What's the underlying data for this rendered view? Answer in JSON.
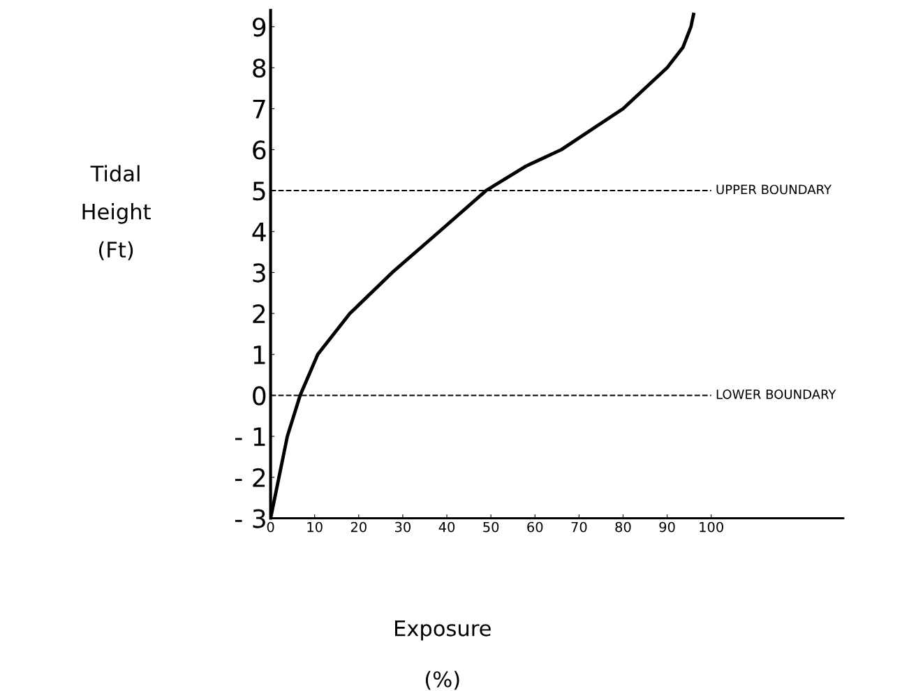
{
  "chart_data": {
    "type": "line",
    "xlabel": "Exposure\n\n(%)",
    "ylabel": "Tidal\n\nHeight\n\n(Ft)",
    "x": [
      0,
      1.9,
      3.8,
      6.7,
      10.7,
      18,
      27.6,
      38.3,
      48.9,
      58,
      66,
      73,
      80,
      90,
      93.6,
      95.4,
      96
    ],
    "series": [
      {
        "color": "#000000",
        "values": [
          -3,
          -2,
          -1,
          0,
          1,
          2,
          3,
          4,
          5,
          5.6,
          6,
          6.5,
          7,
          8,
          8.5,
          9,
          9.3
        ]
      }
    ],
    "xlim": [
      0,
      130
    ],
    "ylim": [
      -3,
      9.4
    ],
    "xticks": [
      0,
      10,
      20,
      30,
      40,
      50,
      60,
      70,
      80,
      90,
      100
    ],
    "yticks": [
      {
        "value": -3,
        "label": "- 3"
      },
      {
        "value": -2,
        "label": "- 2"
      },
      {
        "value": -1,
        "label": "- 1"
      },
      0,
      1,
      2,
      3,
      4,
      5,
      6,
      7,
      8,
      9
    ],
    "ref_lines": [
      {
        "axis": "y",
        "value": 5,
        "label": "UPPER BOUNDARY",
        "line_style": "dashed",
        "color": "#000000"
      },
      {
        "axis": "y",
        "value": 0,
        "label": "LOWER BOUNDARY",
        "line_style": "dashed",
        "color": "#000000"
      }
    ],
    "grid": false,
    "legend": false,
    "marker": "none",
    "line_style": "solid"
  }
}
